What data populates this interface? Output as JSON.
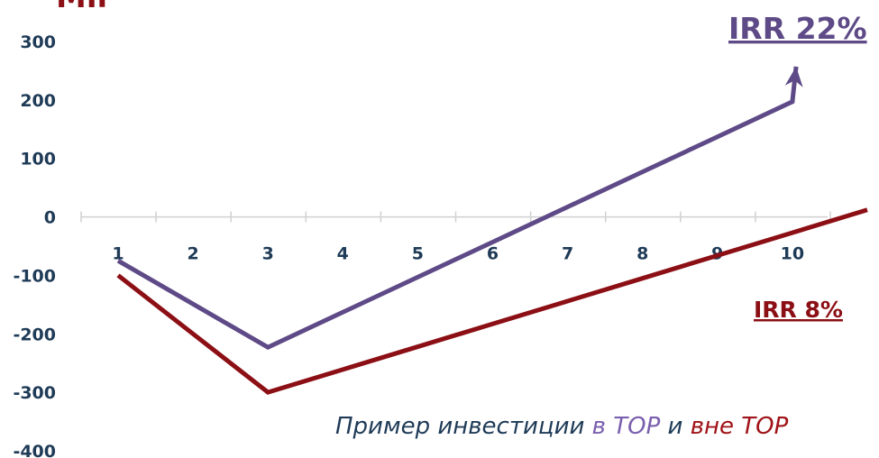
{
  "chart_data": {
    "type": "line",
    "x": [
      1,
      2,
      3,
      4,
      5,
      6,
      7,
      8,
      9,
      10
    ],
    "categories": [
      "1",
      "2",
      "3",
      "4",
      "5",
      "6",
      "7",
      "8",
      "9",
      "10"
    ],
    "ylim": [
      -400,
      300
    ],
    "yticks": [
      "300",
      "200",
      "100",
      "0",
      "-100",
      "-200",
      "-300",
      "-400"
    ],
    "ytick_values": [
      300,
      200,
      100,
      0,
      -100,
      -200,
      -300,
      -400
    ],
    "unit_label": "Mil",
    "series": [
      {
        "name": "в TOP",
        "label": "IRR 22%",
        "color": "#5e4a87",
        "values": [
          -75,
          -149,
          -223,
          -163,
          -103,
          -43,
          17,
          77,
          137,
          197,
          257
        ],
        "x": [
          1,
          2,
          3,
          4,
          5,
          6,
          7,
          8,
          9,
          10,
          10.05
        ]
      },
      {
        "name": "вне TOP",
        "label": "IRR 8%",
        "color": "#8b0f14",
        "values": [
          -100,
          -200,
          -300,
          -261,
          -222,
          -183,
          -144,
          -105,
          -66,
          -27,
          12
        ],
        "x": [
          1,
          2,
          3,
          4,
          5,
          6,
          7,
          8,
          9,
          10,
          11
        ]
      }
    ],
    "caption": {
      "prefix": "Пример инвестиции ",
      "part_top": "в TOP",
      "middle": " и ",
      "part_out": "вне TOP"
    },
    "grid": false
  }
}
